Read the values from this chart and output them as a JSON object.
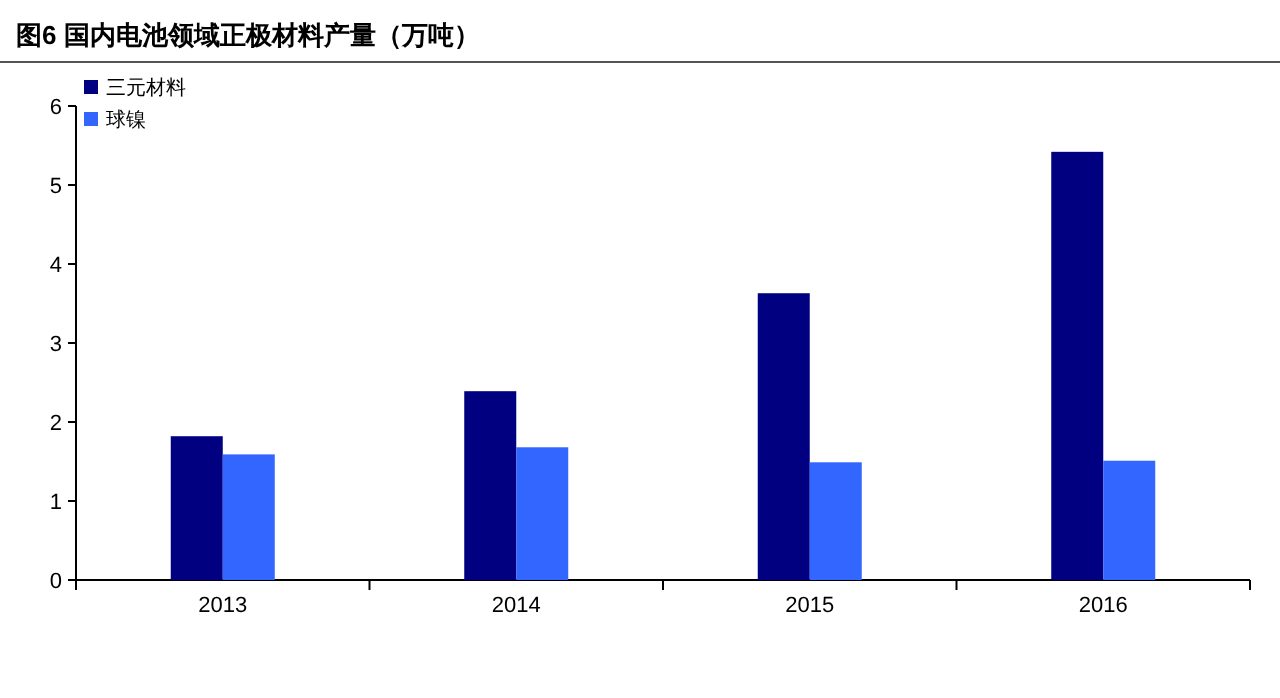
{
  "chart_data": {
    "type": "bar",
    "title": "图6 国内电池领域正极材料产量（万吨）",
    "categories": [
      "2013",
      "2014",
      "2015",
      "2016"
    ],
    "series": [
      {
        "name": "三元材料",
        "color": "#000080",
        "values": [
          1.82,
          2.39,
          3.63,
          5.42
        ]
      },
      {
        "name": "球镍",
        "color": "#3366ff",
        "values": [
          1.59,
          1.68,
          1.49,
          1.51
        ]
      }
    ],
    "ylim": [
      0,
      6
    ],
    "yticks": [
      0,
      1,
      2,
      3,
      4,
      5,
      6
    ],
    "grid": false,
    "legend": "top left"
  }
}
